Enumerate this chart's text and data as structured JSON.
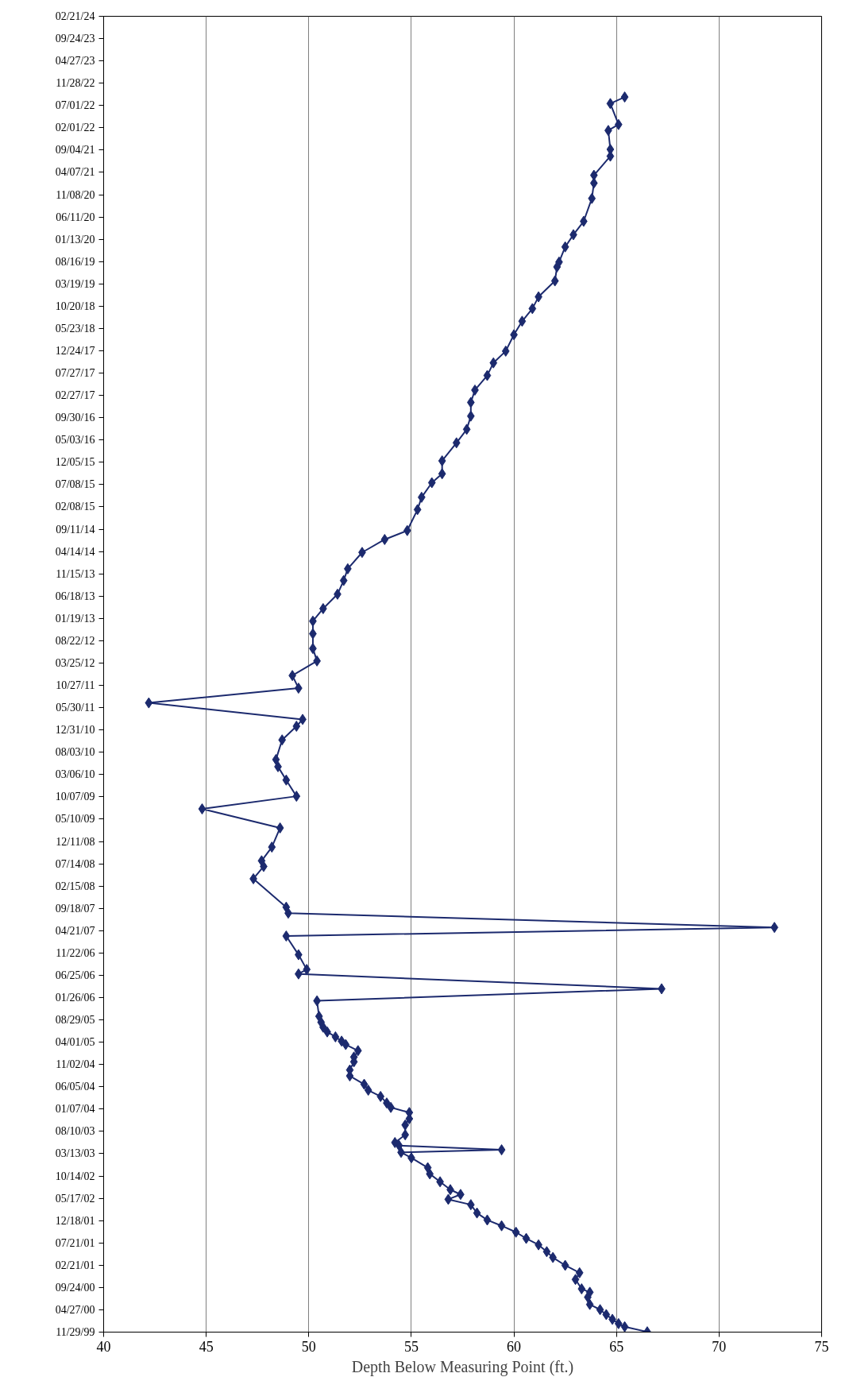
{
  "chart_data": {
    "type": "line",
    "orientation": "horizontal",
    "xlabel": "Depth Below Measuring Point (ft.)",
    "xlim": [
      40,
      75
    ],
    "xticks": [
      40,
      45,
      50,
      55,
      60,
      65,
      70,
      75
    ],
    "grid": "x",
    "marker": "diamond",
    "line_style": "solid",
    "ylim": [
      "1999-11-29",
      "2024-02-21"
    ],
    "yticks": [
      {
        "value": "1999-11-29",
        "label": "11/29/99"
      },
      {
        "value": "2000-04-27",
        "label": "04/27/00"
      },
      {
        "value": "2000-09-24",
        "label": "09/24/00"
      },
      {
        "value": "2001-02-21",
        "label": "02/21/01"
      },
      {
        "value": "2001-07-21",
        "label": "07/21/01"
      },
      {
        "value": "2001-12-18",
        "label": "12/18/01"
      },
      {
        "value": "2002-05-17",
        "label": "05/17/02"
      },
      {
        "value": "2002-10-14",
        "label": "10/14/02"
      },
      {
        "value": "2003-03-13",
        "label": "03/13/03"
      },
      {
        "value": "2003-08-10",
        "label": "08/10/03"
      },
      {
        "value": "2004-01-07",
        "label": "01/07/04"
      },
      {
        "value": "2004-06-05",
        "label": "06/05/04"
      },
      {
        "value": "2004-11-02",
        "label": "11/02/04"
      },
      {
        "value": "2005-04-01",
        "label": "04/01/05"
      },
      {
        "value": "2005-08-29",
        "label": "08/29/05"
      },
      {
        "value": "2006-01-26",
        "label": "01/26/06"
      },
      {
        "value": "2006-06-25",
        "label": "06/25/06"
      },
      {
        "value": "2006-11-22",
        "label": "11/22/06"
      },
      {
        "value": "2007-04-21",
        "label": "04/21/07"
      },
      {
        "value": "2007-09-18",
        "label": "09/18/07"
      },
      {
        "value": "2008-02-15",
        "label": "02/15/08"
      },
      {
        "value": "2008-07-14",
        "label": "07/14/08"
      },
      {
        "value": "2008-12-11",
        "label": "12/11/08"
      },
      {
        "value": "2009-05-10",
        "label": "05/10/09"
      },
      {
        "value": "2009-10-07",
        "label": "10/07/09"
      },
      {
        "value": "2010-03-06",
        "label": "03/06/10"
      },
      {
        "value": "2010-08-03",
        "label": "08/03/10"
      },
      {
        "value": "2010-12-31",
        "label": "12/31/10"
      },
      {
        "value": "2011-05-30",
        "label": "05/30/11"
      },
      {
        "value": "2011-10-27",
        "label": "10/27/11"
      },
      {
        "value": "2012-03-25",
        "label": "03/25/12"
      },
      {
        "value": "2012-08-22",
        "label": "08/22/12"
      },
      {
        "value": "2013-01-19",
        "label": "01/19/13"
      },
      {
        "value": "2013-06-18",
        "label": "06/18/13"
      },
      {
        "value": "2013-11-15",
        "label": "11/15/13"
      },
      {
        "value": "2014-04-14",
        "label": "04/14/14"
      },
      {
        "value": "2014-09-11",
        "label": "09/11/14"
      },
      {
        "value": "2015-02-08",
        "label": "02/08/15"
      },
      {
        "value": "2015-07-08",
        "label": "07/08/15"
      },
      {
        "value": "2015-12-05",
        "label": "12/05/15"
      },
      {
        "value": "2016-05-03",
        "label": "05/03/16"
      },
      {
        "value": "2016-09-30",
        "label": "09/30/16"
      },
      {
        "value": "2017-02-27",
        "label": "02/27/17"
      },
      {
        "value": "2017-07-27",
        "label": "07/27/17"
      },
      {
        "value": "2017-12-24",
        "label": "12/24/17"
      },
      {
        "value": "2018-05-23",
        "label": "05/23/18"
      },
      {
        "value": "2018-10-20",
        "label": "10/20/18"
      },
      {
        "value": "2019-03-19",
        "label": "03/19/19"
      },
      {
        "value": "2019-08-16",
        "label": "08/16/19"
      },
      {
        "value": "2020-01-13",
        "label": "01/13/20"
      },
      {
        "value": "2020-06-11",
        "label": "06/11/20"
      },
      {
        "value": "2020-11-08",
        "label": "11/08/20"
      },
      {
        "value": "2021-04-07",
        "label": "04/07/21"
      },
      {
        "value": "2021-09-04",
        "label": "09/04/21"
      },
      {
        "value": "2022-02-01",
        "label": "02/01/22"
      },
      {
        "value": "2022-07-01",
        "label": "07/01/22"
      },
      {
        "value": "2022-11-28",
        "label": "11/28/22"
      },
      {
        "value": "2023-04-27",
        "label": "04/27/23"
      },
      {
        "value": "2023-09-24",
        "label": "09/24/23"
      },
      {
        "value": "2024-02-21",
        "label": "02/21/24"
      }
    ],
    "x": [
      "1999-12-01",
      "2000-01-04",
      "2000-01-25",
      "2000-02-23",
      "2000-03-26",
      "2000-04-28",
      "2000-06-02",
      "2000-07-21",
      "2000-08-23",
      "2000-09-15",
      "2000-11-17",
      "2001-01-01",
      "2001-02-20",
      "2001-04-14",
      "2001-05-23",
      "2001-07-08",
      "2001-08-20",
      "2001-10-01",
      "2001-11-13",
      "2001-12-22",
      "2002-02-07",
      "2002-04-04",
      "2002-05-10",
      "2002-06-12",
      "2002-07-14",
      "2002-09-05",
      "2002-10-28",
      "2002-12-09",
      "2003-02-13",
      "2003-03-22",
      "2003-04-08",
      "2003-05-07",
      "2003-05-27",
      "2003-07-18",
      "2003-09-22",
      "2003-11-03",
      "2003-12-15",
      "2004-01-18",
      "2004-02-17",
      "2004-04-01",
      "2004-05-13",
      "2004-06-22",
      "2004-08-17",
      "2004-09-26",
      "2004-11-20",
      "2004-12-22",
      "2005-02-03",
      "2005-03-16",
      "2005-04-08",
      "2005-05-07",
      "2005-06-09",
      "2005-07-11",
      "2005-08-13",
      "2005-09-22",
      "2006-01-04",
      "2006-03-26",
      "2006-07-04",
      "2006-08-03",
      "2006-11-10",
      "2007-03-16",
      "2007-05-13",
      "2007-08-17",
      "2007-09-26",
      "2008-04-04",
      "2008-06-26",
      "2008-08-03",
      "2008-11-03",
      "2009-03-12",
      "2009-07-18",
      "2009-10-11",
      "2010-01-28",
      "2010-04-28",
      "2010-06-15",
      "2010-10-25",
      "2011-01-25",
      "2011-03-12",
      "2011-07-01",
      "2011-10-08",
      "2012-01-01",
      "2012-04-08",
      "2012-07-01",
      "2012-10-08",
      "2013-01-01",
      "2013-03-26",
      "2013-07-01",
      "2013-10-01",
      "2013-12-19",
      "2014-04-08",
      "2014-07-04",
      "2014-09-02",
      "2015-01-21",
      "2015-04-14",
      "2015-07-21",
      "2015-09-19",
      "2015-12-15",
      "2016-04-14",
      "2016-07-14",
      "2016-10-11",
      "2017-01-11",
      "2017-04-04",
      "2017-07-11",
      "2017-10-04",
      "2017-12-22",
      "2018-04-11",
      "2018-07-11",
      "2018-10-04",
      "2018-12-22",
      "2019-04-08",
      "2019-07-11",
      "2019-08-13",
      "2019-11-23",
      "2020-02-13",
      "2020-05-13",
      "2020-10-14",
      "2021-01-25",
      "2021-03-19",
      "2021-07-25",
      "2021-09-09",
      "2022-01-14",
      "2022-02-23",
      "2022-07-14",
      "2022-08-27"
    ],
    "series": [
      {
        "color": "#1c2a6e",
        "values": [
          66.5,
          65.4,
          65.1,
          64.8,
          64.5,
          64.2,
          63.7,
          63.6,
          63.7,
          63.3,
          63.0,
          63.2,
          62.5,
          61.9,
          61.6,
          61.2,
          60.6,
          60.1,
          59.4,
          58.7,
          58.2,
          57.9,
          56.8,
          57.4,
          56.9,
          56.4,
          55.9,
          55.8,
          55.0,
          54.5,
          59.4,
          54.4,
          54.2,
          54.7,
          54.7,
          54.9,
          54.9,
          54.0,
          53.8,
          53.5,
          52.9,
          52.7,
          52.0,
          52.0,
          52.2,
          52.2,
          52.4,
          51.8,
          51.6,
          51.3,
          50.9,
          50.7,
          50.6,
          50.5,
          50.4,
          67.2,
          49.5,
          49.9,
          49.5,
          48.9,
          72.7,
          49.0,
          48.9,
          47.3,
          47.8,
          47.7,
          48.2,
          48.6,
          44.8,
          49.4,
          48.9,
          48.5,
          48.4,
          48.7,
          49.4,
          49.7,
          42.2,
          49.5,
          49.2,
          50.4,
          50.2,
          50.2,
          50.2,
          50.7,
          51.4,
          51.7,
          51.9,
          52.6,
          53.7,
          54.8,
          55.3,
          55.5,
          56.0,
          56.5,
          56.5,
          57.2,
          57.7,
          57.9,
          57.9,
          58.1,
          58.7,
          59.0,
          59.6,
          60.0,
          60.4,
          60.9,
          61.2,
          62.0,
          62.1,
          62.2,
          62.5,
          62.9,
          63.4,
          63.8,
          63.9,
          63.9,
          64.7,
          64.7,
          64.6,
          65.1,
          64.7,
          65.4
        ]
      }
    ]
  }
}
